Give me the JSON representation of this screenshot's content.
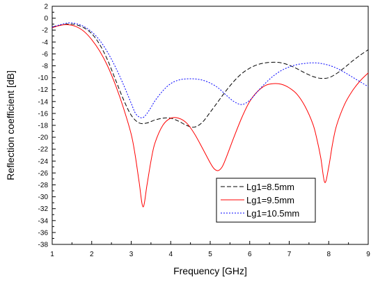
{
  "chart_data": {
    "type": "line",
    "title": "",
    "xlabel": "Frequency [GHz]",
    "ylabel": "Reflection coefficient [dB]",
    "xlim": [
      1,
      9
    ],
    "ylim": [
      -38,
      2
    ],
    "x_ticks": [
      1,
      2,
      3,
      4,
      5,
      6,
      7,
      8,
      9
    ],
    "y_ticks": [
      2,
      0,
      -2,
      -4,
      -6,
      -8,
      -10,
      -12,
      -14,
      -16,
      -18,
      -20,
      -22,
      -24,
      -26,
      -28,
      -30,
      -32,
      -34,
      -36,
      -38
    ],
    "grid": false,
    "legend_position": "bottom-right",
    "series": [
      {
        "name": "Lg1=8.5mm",
        "color": "#000000",
        "line_style": "dashed",
        "x": [
          1.0,
          1.2,
          1.4,
          1.6,
          1.8,
          2.0,
          2.2,
          2.4,
          2.6,
          2.8,
          3.0,
          3.2,
          3.4,
          3.6,
          3.8,
          4.0,
          4.2,
          4.4,
          4.6,
          4.8,
          5.0,
          5.2,
          5.4,
          5.6,
          5.8,
          6.0,
          6.2,
          6.4,
          6.6,
          6.8,
          7.0,
          7.2,
          7.4,
          7.6,
          7.8,
          8.0,
          8.2,
          8.4,
          8.6,
          8.8,
          9.0
        ],
        "y": [
          -1.5,
          -1.2,
          -1.0,
          -1.1,
          -1.6,
          -2.6,
          -4.4,
          -7.0,
          -10.3,
          -13.6,
          -16.3,
          -17.6,
          -17.6,
          -17.1,
          -16.8,
          -16.8,
          -17.3,
          -18.0,
          -18.3,
          -17.5,
          -15.8,
          -14.0,
          -12.2,
          -10.6,
          -9.3,
          -8.4,
          -7.8,
          -7.5,
          -7.4,
          -7.5,
          -7.9,
          -8.5,
          -9.2,
          -9.8,
          -10.1,
          -10.0,
          -9.3,
          -8.3,
          -7.2,
          -6.2,
          -5.3
        ]
      },
      {
        "name": "Lg1=9.5mm",
        "color": "#ff0000",
        "line_style": "solid",
        "x": [
          1.0,
          1.2,
          1.4,
          1.6,
          1.8,
          2.0,
          2.2,
          2.4,
          2.6,
          2.8,
          3.0,
          3.1,
          3.2,
          3.3,
          3.4,
          3.5,
          3.6,
          3.8,
          4.0,
          4.2,
          4.4,
          4.6,
          4.8,
          5.0,
          5.1,
          5.2,
          5.3,
          5.4,
          5.6,
          5.8,
          6.0,
          6.2,
          6.4,
          6.6,
          6.8,
          7.0,
          7.2,
          7.4,
          7.6,
          7.7,
          7.8,
          7.9,
          8.0,
          8.1,
          8.2,
          8.4,
          8.6,
          8.8,
          9.0
        ],
        "y": [
          -1.6,
          -1.2,
          -1.1,
          -1.4,
          -2.2,
          -3.6,
          -5.5,
          -8.0,
          -11.2,
          -15.0,
          -19.5,
          -23.0,
          -27.5,
          -31.7,
          -28.0,
          -24.0,
          -21.0,
          -18.0,
          -16.8,
          -16.8,
          -17.6,
          -19.4,
          -21.8,
          -24.3,
          -25.3,
          -25.6,
          -25.0,
          -23.5,
          -20.0,
          -16.7,
          -14.0,
          -12.3,
          -11.3,
          -11.0,
          -11.1,
          -11.7,
          -12.8,
          -14.8,
          -17.8,
          -20.3,
          -23.5,
          -27.6,
          -25.0,
          -21.0,
          -18.0,
          -14.5,
          -12.2,
          -10.5,
          -9.2
        ]
      },
      {
        "name": "Lg1=10.5mm",
        "color": "#0000ff",
        "line_style": "dotted",
        "x": [
          1.0,
          1.2,
          1.4,
          1.6,
          1.8,
          2.0,
          2.2,
          2.4,
          2.6,
          2.8,
          3.0,
          3.1,
          3.2,
          3.3,
          3.4,
          3.5,
          3.6,
          3.8,
          4.0,
          4.2,
          4.4,
          4.6,
          4.8,
          5.0,
          5.2,
          5.4,
          5.6,
          5.8,
          6.0,
          6.2,
          6.4,
          6.6,
          6.8,
          7.0,
          7.2,
          7.4,
          7.6,
          7.8,
          8.0,
          8.2,
          8.4,
          8.6,
          8.8,
          9.0
        ],
        "y": [
          -1.5,
          -1.1,
          -0.8,
          -0.9,
          -1.4,
          -2.3,
          -3.7,
          -5.7,
          -8.2,
          -11.1,
          -14.3,
          -15.9,
          -16.6,
          -16.7,
          -16.0,
          -15.0,
          -13.9,
          -12.2,
          -11.0,
          -10.4,
          -10.2,
          -10.2,
          -10.4,
          -10.9,
          -11.7,
          -12.9,
          -14.0,
          -14.5,
          -13.8,
          -12.3,
          -10.9,
          -9.7,
          -8.8,
          -8.2,
          -7.8,
          -7.6,
          -7.5,
          -7.6,
          -7.9,
          -8.4,
          -9.1,
          -9.9,
          -10.7,
          -11.5
        ]
      }
    ]
  }
}
